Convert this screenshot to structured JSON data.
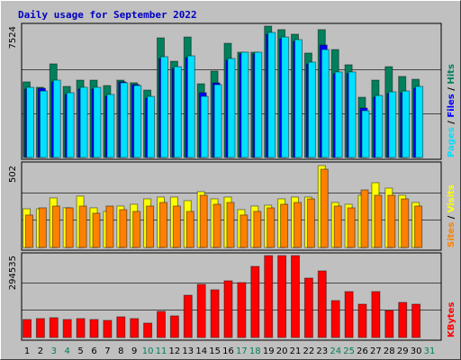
{
  "chart_data": [
    {
      "type": "bar",
      "title": "Daily usage for September 2022",
      "ylim": [
        0,
        7524
      ],
      "yticks": [
        7524
      ],
      "legend_separator": " / ",
      "series": [
        {
          "name": "Hits",
          "color": "#00805c",
          "values": [
            4330,
            4020,
            5360,
            4070,
            4430,
            4430,
            4120,
            4430,
            4280,
            3860,
            6850,
            5510,
            6900,
            4220,
            4950,
            6540,
            6030,
            6030,
            7524,
            7320,
            7060,
            5980,
            7320,
            6180,
            5310,
            3450,
            4430,
            5200,
            4640,
            4480,
            0
          ]
        },
        {
          "name": "Files",
          "color": "#0000ff",
          "values": [
            3920,
            3960,
            4330,
            3610,
            3920,
            3920,
            3510,
            4330,
            4170,
            3400,
            5670,
            5100,
            5720,
            3710,
            4270,
            5570,
            5930,
            5930,
            7060,
            6800,
            6650,
            5360,
            6440,
            4800,
            4800,
            2830,
            3450,
            3660,
            3710,
            3970,
            0
          ]
        },
        {
          "name": "Pages",
          "color": "#00e0ff",
          "values": [
            4020,
            3810,
            4430,
            3710,
            4020,
            4020,
            3610,
            4280,
            4120,
            3500,
            5770,
            5200,
            5820,
            3500,
            4170,
            5670,
            6030,
            6030,
            7160,
            6900,
            6750,
            5460,
            6180,
            4900,
            4900,
            2680,
            3550,
            3760,
            3810,
            4070,
            0
          ]
        }
      ]
    },
    {
      "type": "bar",
      "ylim": [
        0,
        502
      ],
      "yticks": [
        502
      ],
      "legend_separator": " / ",
      "series": [
        {
          "name": "Visits",
          "color": "#ffff00",
          "values": [
            237,
            237,
            304,
            243,
            315,
            243,
            221,
            254,
            265,
            298,
            309,
            309,
            287,
            342,
            298,
            309,
            232,
            254,
            259,
            298,
            309,
            309,
            502,
            276,
            265,
            320,
            397,
            364,
            320,
            276,
            0
          ]
        },
        {
          "name": "Sites",
          "color": "#ff8000",
          "values": [
            199,
            243,
            254,
            243,
            254,
            210,
            254,
            232,
            221,
            254,
            276,
            254,
            221,
            320,
            265,
            276,
            199,
            221,
            243,
            265,
            276,
            298,
            480,
            254,
            243,
            353,
            320,
            320,
            298,
            254,
            0
          ]
        }
      ]
    },
    {
      "type": "bar",
      "ylim": [
        0,
        294535
      ],
      "yticks": [
        294535
      ],
      "categories": [
        "1",
        "2",
        "3",
        "4",
        "5",
        "6",
        "7",
        "8",
        "9",
        "10",
        "11",
        "12",
        "13",
        "14",
        "15",
        "16",
        "17",
        "18",
        "19",
        "20",
        "21",
        "22",
        "23",
        "24",
        "25",
        "26",
        "27",
        "28",
        "29",
        "30",
        "31"
      ],
      "category_colors": [
        "#000000",
        "#000000",
        "#00805c",
        "#00805c",
        "#000000",
        "#000000",
        "#000000",
        "#000000",
        "#000000",
        "#00805c",
        "#00805c",
        "#000000",
        "#000000",
        "#000000",
        "#000000",
        "#000000",
        "#00805c",
        "#00805c",
        "#000000",
        "#000000",
        "#000000",
        "#000000",
        "#000000",
        "#00805c",
        "#00805c",
        "#000000",
        "#000000",
        "#000000",
        "#000000",
        "#000000",
        "#00805c"
      ],
      "series": [
        {
          "name": "KBytes",
          "color": "#ff0000",
          "values": [
            64700,
            68000,
            71200,
            64700,
            68000,
            64700,
            61500,
            74400,
            68000,
            51800,
            93900,
            77700,
            152100,
            191000,
            171600,
            203900,
            197500,
            255700,
            294535,
            294535,
            294535,
            213600,
            239500,
            132700,
            165100,
            119800,
            165100,
            97100,
            126200,
            119800,
            0
          ]
        }
      ]
    }
  ]
}
